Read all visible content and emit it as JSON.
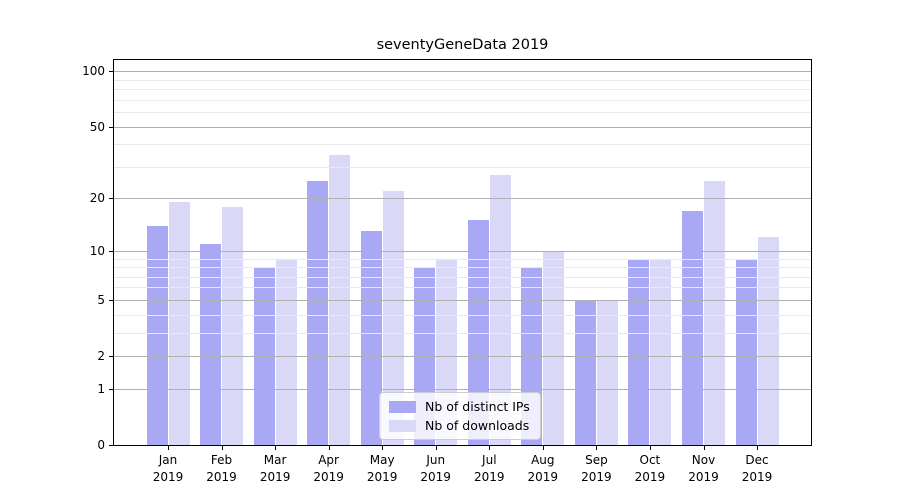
{
  "title": "seventyGeneData 2019",
  "colors": {
    "ips_bar": "#a9a8f4",
    "downloads_bar": "#d9d9f7",
    "grid_major": "#b0b0b0",
    "grid_minor": "#e9e9e9",
    "axis": "#000000",
    "background": "#ffffff",
    "legend_bg": "rgba(255,255,255,0.8)",
    "legend_border": "#cccccc"
  },
  "legend": {
    "position": "lower center",
    "items": [
      {
        "label": "Nb of distinct IPs",
        "color": "#a9a8f4"
      },
      {
        "label": "Nb of downloads",
        "color": "#d9d9f7"
      }
    ]
  },
  "chart_data": {
    "type": "bar",
    "title": "seventyGeneData 2019",
    "categories": [
      "Jan 2019",
      "Feb 2019",
      "Mar 2019",
      "Apr 2019",
      "May 2019",
      "Jun 2019",
      "Jul 2019",
      "Aug 2019",
      "Sep 2019",
      "Oct 2019",
      "Nov 2019",
      "Dec 2019"
    ],
    "series": [
      {
        "name": "Nb of distinct IPs",
        "values": [
          14,
          11,
          8,
          25,
          13,
          8,
          15,
          8,
          5,
          9,
          17,
          9
        ]
      },
      {
        "name": "Nb of downloads",
        "values": [
          19,
          18,
          9,
          35,
          22,
          9,
          27,
          10,
          5,
          9,
          25,
          12
        ]
      }
    ],
    "xlabel": "",
    "ylabel": "",
    "yscale": "symlog(log10(1+v))",
    "yticks": [
      100,
      50,
      20,
      10,
      5,
      2,
      1,
      0
    ],
    "minor_yticks": [
      3,
      4,
      6,
      7,
      8,
      9,
      30,
      40,
      60,
      70,
      80,
      90
    ],
    "ylim": [
      0,
      115
    ],
    "grid": true,
    "legend_position": "lower center"
  }
}
